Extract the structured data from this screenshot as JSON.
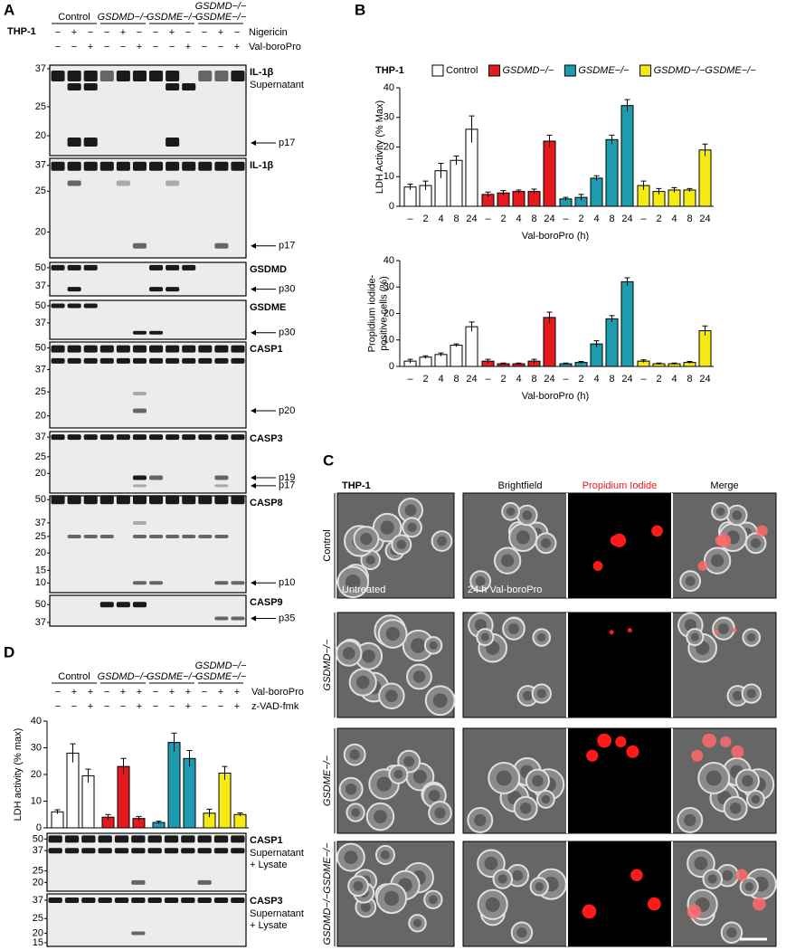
{
  "panel_a": {
    "letter": "A",
    "cell_line": "THP-1",
    "groups": [
      "Control",
      "GSDMD−/−",
      "GSDME−/−",
      [
        "GSDMD−/−",
        "GSDME−/−"
      ]
    ],
    "treatments": [
      {
        "name": "Nigericin",
        "signs": [
          "−",
          "+",
          "−"
        ]
      },
      {
        "name": "Val-boroPro",
        "signs": [
          "−",
          "−",
          "+"
        ]
      }
    ],
    "blots": [
      {
        "label": "IL-1β",
        "sublabel": [
          "Supernatant"
        ],
        "markers": [
          37,
          25,
          20
        ],
        "arrows": [
          "p17"
        ]
      },
      {
        "label": "IL-1β",
        "sublabel": [],
        "markers": [
          37,
          25,
          20
        ],
        "arrows": [
          "p17"
        ]
      },
      {
        "label": "GSDMD",
        "sublabel": [],
        "markers": [
          50,
          37
        ],
        "arrows": [
          "p30"
        ]
      },
      {
        "label": "GSDME",
        "sublabel": [],
        "markers": [
          50,
          37
        ],
        "arrows": [
          "p30"
        ]
      },
      {
        "label": "CASP1",
        "sublabel": [],
        "markers": [
          50,
          37,
          25,
          20
        ],
        "arrows": [
          "p20"
        ]
      },
      {
        "label": "CASP3",
        "sublabel": [],
        "markers": [
          37,
          25,
          20
        ],
        "arrows": [
          "p19",
          "p17"
        ]
      },
      {
        "label": "CASP8",
        "sublabel": [],
        "markers": [
          50,
          37,
          25,
          20,
          15,
          10
        ],
        "arrows": [
          "p10"
        ]
      },
      {
        "label": "CASP9",
        "sublabel": [],
        "markers": [
          50,
          37
        ],
        "arrows": [
          "p35"
        ]
      }
    ]
  },
  "panel_b": {
    "letter": "B",
    "cell_line": "THP-1"
  },
  "chart_data": [
    {
      "type": "bar",
      "ylabel": [
        "LDH Activity (% Max)"
      ],
      "xlabel": "Val-boroPro (h)",
      "categories": [
        "–",
        "2",
        "4",
        "8",
        "24"
      ],
      "ylim": [
        0,
        40
      ],
      "yticks": [
        0,
        10,
        20,
        30,
        40
      ],
      "series": [
        {
          "name": "Control",
          "color": "#ffffff",
          "values": [
            6.5,
            7,
            12,
            15.5,
            26
          ],
          "errors": [
            1,
            1.5,
            2.5,
            1.5,
            4.5
          ]
        },
        {
          "name": "GSDMD−/−",
          "color": "#e41a1c",
          "values": [
            4,
            4.5,
            5,
            5,
            22
          ],
          "errors": [
            0.8,
            0.8,
            0.5,
            0.8,
            2
          ]
        },
        {
          "name": "GSDME−/−",
          "color": "#1f9bb0",
          "values": [
            2.5,
            3,
            9.5,
            22.5,
            34
          ],
          "errors": [
            0.5,
            1,
            0.8,
            1.5,
            2
          ]
        },
        {
          "name": "GSDMD−/−GSDME−/−",
          "color": "#f5ea14",
          "values": [
            7,
            5,
            5.5,
            5.5,
            19
          ],
          "errors": [
            1.5,
            1,
            0.8,
            0.5,
            2
          ]
        }
      ]
    },
    {
      "type": "bar",
      "ylabel": [
        "Propidium iodide-",
        "positive cells (%)"
      ],
      "xlabel": "Val-boroPro (h)",
      "categories": [
        "–",
        "2",
        "4",
        "8",
        "24"
      ],
      "ylim": [
        0,
        40
      ],
      "yticks": [
        0,
        10,
        20,
        30,
        40
      ],
      "series": [
        {
          "name": "Control",
          "color": "#ffffff",
          "values": [
            2,
            3.5,
            4.5,
            8,
            15
          ],
          "errors": [
            0.7,
            0.5,
            0.6,
            0.5,
            1.8
          ]
        },
        {
          "name": "GSDMD−/−",
          "color": "#e41a1c",
          "values": [
            2,
            1,
            1,
            2,
            18.5
          ],
          "errors": [
            0.7,
            0.3,
            0.3,
            0.7,
            2
          ]
        },
        {
          "name": "GSDME−/−",
          "color": "#1f9bb0",
          "values": [
            1,
            1.5,
            8.5,
            18,
            32
          ],
          "errors": [
            0.3,
            0.4,
            1.2,
            1.2,
            1.5
          ]
        },
        {
          "name": "GSDMD−/−GSDME−/−",
          "color": "#f5ea14",
          "values": [
            2,
            1,
            1,
            1.5,
            13.5
          ],
          "errors": [
            0.5,
            0.3,
            0.3,
            0.4,
            1.8
          ]
        }
      ]
    },
    {
      "type": "bar",
      "ylabel": [
        "LDH activity (% max)"
      ],
      "ylim": [
        0,
        40
      ],
      "yticks": [
        0,
        10,
        20,
        30,
        40
      ],
      "groups": [
        "Control",
        "GSDMD−/−",
        "GSDME−/−",
        [
          "GSDMD−/−",
          "GSDME−/−"
        ]
      ],
      "treatments": [
        {
          "name": "Val-boroPro",
          "signs": [
            "−",
            "+",
            "+"
          ]
        },
        {
          "name": "z-VAD-fmk",
          "signs": [
            "−",
            "−",
            "+"
          ]
        }
      ],
      "series": [
        {
          "color": "#ffffff",
          "values": [
            6,
            28,
            19.5
          ],
          "errors": [
            0.8,
            3.5,
            2.5
          ]
        },
        {
          "color": "#e41a1c",
          "values": [
            4,
            23,
            3.5
          ],
          "errors": [
            1,
            3,
            0.8
          ]
        },
        {
          "color": "#1f9bb0",
          "values": [
            2,
            32,
            26
          ],
          "errors": [
            0.5,
            3.5,
            3
          ]
        },
        {
          "color": "#f5ea14",
          "values": [
            5.5,
            20.5,
            5
          ],
          "errors": [
            1.5,
            2.5,
            0.6
          ]
        }
      ]
    }
  ],
  "panel_c": {
    "letter": "C",
    "cell_line": "THP-1",
    "columns": [
      "Brightfield",
      "Propidium Iodide",
      "Merge"
    ],
    "rows": [
      "Control",
      "GSDMD−/−",
      "GSDME−/−",
      "GSDMD−/−GSDME−/−"
    ],
    "conditions": [
      "Untreated",
      "24 h Val-boroPro"
    ]
  },
  "panel_d": {
    "letter": "D",
    "blots": [
      {
        "label": "CASP1",
        "sublabel": [
          "Supernatant",
          "+ Lysate"
        ],
        "markers": [
          50,
          37,
          25,
          20
        ]
      },
      {
        "label": "CASP3",
        "sublabel": [
          "Supernatant",
          "+ Lysate"
        ],
        "markers": [
          37,
          25,
          20,
          15
        ]
      }
    ]
  }
}
